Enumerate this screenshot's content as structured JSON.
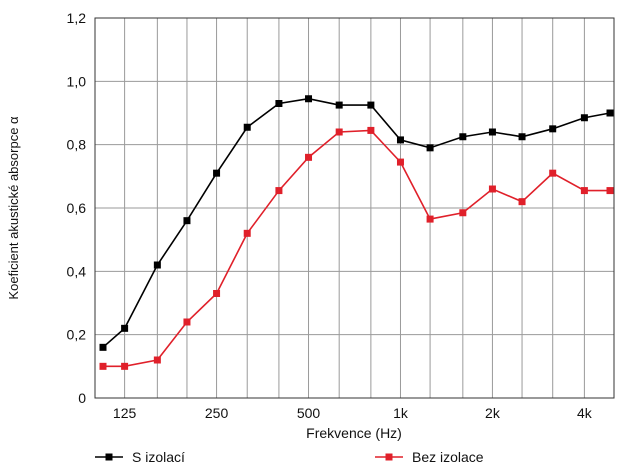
{
  "chart_data": {
    "type": "line",
    "xlabel": "Frekvence (Hz)",
    "ylabel": "Koeficient akustické absorpce α",
    "x_scale": "log",
    "xlim": [
      100,
      5000
    ],
    "ylim": [
      0,
      1.2
    ],
    "grid": true,
    "x_ticks": [
      {
        "value": 125,
        "label": "125"
      },
      {
        "value": 250,
        "label": "250"
      },
      {
        "value": 500,
        "label": "500"
      },
      {
        "value": 1000,
        "label": "1k"
      },
      {
        "value": 2000,
        "label": "2k"
      },
      {
        "value": 4000,
        "label": "4k"
      }
    ],
    "x_minor_gridlines": [
      160,
      200,
      315,
      400,
      630,
      800,
      1250,
      1600,
      2500,
      3150
    ],
    "y_ticks": [
      {
        "value": 0,
        "label": "0"
      },
      {
        "value": 0.2,
        "label": "0,2"
      },
      {
        "value": 0.4,
        "label": "0,4"
      },
      {
        "value": 0.6,
        "label": "0,6"
      },
      {
        "value": 0.8,
        "label": "0,8"
      },
      {
        "value": 1.0,
        "label": "1,0"
      },
      {
        "value": 1.2,
        "label": "1,2"
      }
    ],
    "x": [
      100,
      125,
      160,
      200,
      250,
      315,
      400,
      500,
      630,
      800,
      1000,
      1250,
      1600,
      2000,
      2500,
      3150,
      4000,
      5000
    ],
    "series": [
      {
        "name": "S izolací",
        "color": "#000000",
        "values": [
          0.16,
          0.22,
          0.42,
          0.56,
          0.71,
          0.855,
          0.93,
          0.945,
          0.925,
          0.925,
          0.815,
          0.79,
          0.825,
          0.84,
          0.825,
          0.85,
          0.885,
          0.9
        ]
      },
      {
        "name": "Bez izolace",
        "color": "#e0202a",
        "values": [
          0.1,
          0.1,
          0.12,
          0.24,
          0.33,
          0.52,
          0.655,
          0.76,
          0.84,
          0.845,
          0.745,
          0.565,
          0.585,
          0.66,
          0.62,
          0.71,
          0.655,
          0.655
        ]
      }
    ],
    "legend_position": "bottom"
  }
}
